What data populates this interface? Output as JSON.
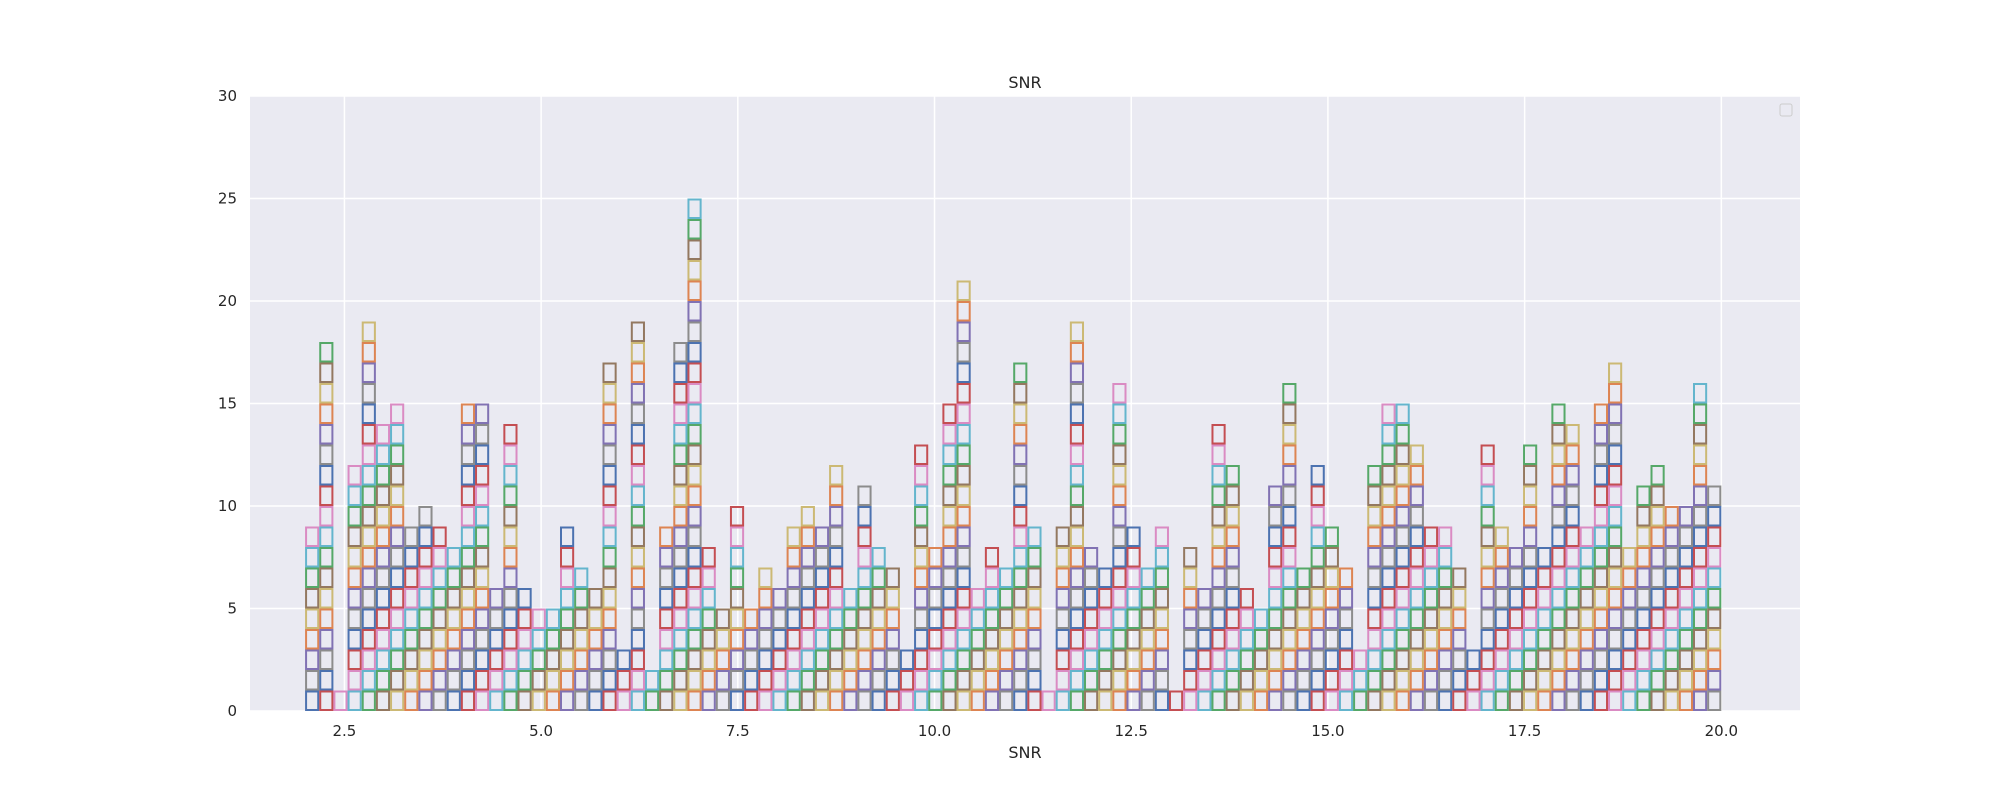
{
  "chart_data": {
    "type": "bar",
    "title": "SNR",
    "xlabel": "SNR",
    "ylabel": "",
    "xlim": [
      1.3,
      21.0
    ],
    "ylim": [
      0,
      30
    ],
    "x_ticks": [
      "2.5",
      "5.0",
      "7.5",
      "10.0",
      "12.5",
      "15.0",
      "17.5",
      "20.0"
    ],
    "y_ticks": [
      "0",
      "5",
      "10",
      "15",
      "20",
      "25",
      "30"
    ],
    "grid": true,
    "legend": "top-right",
    "bin_start": 2.0,
    "bin_width": 0.18,
    "bin_counts": [
      9,
      18,
      1,
      12,
      19,
      14,
      15,
      9,
      10,
      9,
      8,
      15,
      15,
      6,
      14,
      6,
      5,
      5,
      9,
      7,
      6,
      17,
      3,
      19,
      2,
      9,
      18,
      25,
      8,
      5,
      10,
      5,
      7,
      6,
      9,
      10,
      9,
      12,
      6,
      11,
      8,
      7,
      3,
      13,
      8,
      15,
      21,
      6,
      8,
      7,
      17,
      9,
      1,
      9,
      19,
      8,
      7,
      16,
      9,
      7,
      9,
      1,
      8,
      6,
      14,
      12,
      6,
      5,
      11,
      16,
      7,
      12,
      9,
      7,
      3,
      12,
      15,
      15,
      13,
      9,
      9,
      7,
      3,
      13,
      9,
      8,
      13,
      8,
      15,
      14,
      9,
      15,
      17,
      8,
      11,
      12,
      10,
      10,
      16,
      11
    ],
    "colors": [
      "#4c72b0",
      "#dd8452",
      "#55a868",
      "#c44e52",
      "#8172b3",
      "#937860",
      "#da8bc3",
      "#8c8c8c",
      "#ccb974",
      "#64b5cd"
    ]
  }
}
